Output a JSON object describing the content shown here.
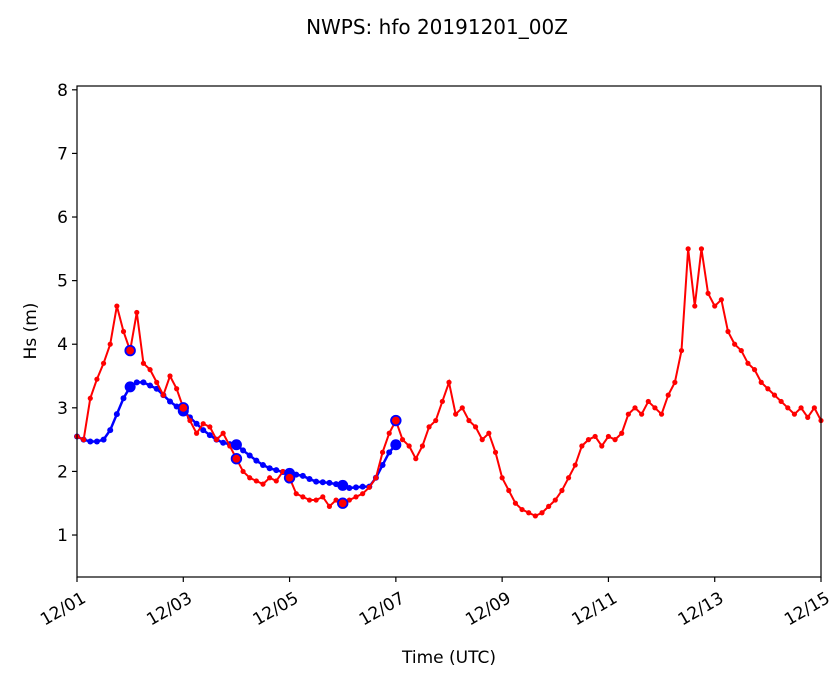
{
  "chart_data": {
    "type": "line",
    "title": "NWPS: hfo 20191201_00Z",
    "xlabel": "Time (UTC)",
    "ylabel": "Hs (m)",
    "xlim": [
      "12/01 00Z",
      "12/15 00Z"
    ],
    "ylim": [
      0.34,
      8.06
    ],
    "x_ticks": [
      "12/01",
      "12/03",
      "12/05",
      "12/07",
      "12/09",
      "12/11",
      "12/13",
      "12/15"
    ],
    "y_ticks": [
      "1",
      "2",
      "3",
      "4",
      "5",
      "6",
      "7",
      "8"
    ],
    "grid": false,
    "colors": {
      "red_series": "#ff0000",
      "blue_series": "#0000ff"
    },
    "series": [
      {
        "color": "#ff0000",
        "marker": "small-dot",
        "points": [
          [
            "12/01 00Z",
            2.55
          ],
          [
            "12/01 03Z",
            2.5
          ],
          [
            "12/01 06Z",
            3.15
          ],
          [
            "12/01 09Z",
            3.45
          ],
          [
            "12/01 12Z",
            3.7
          ],
          [
            "12/01 15Z",
            4.0
          ],
          [
            "12/01 18Z",
            4.6
          ],
          [
            "12/01 21Z",
            4.2
          ],
          [
            "12/02 00Z",
            3.9
          ],
          [
            "12/02 03Z",
            4.5
          ],
          [
            "12/02 06Z",
            3.7
          ],
          [
            "12/02 09Z",
            3.6
          ],
          [
            "12/02 12Z",
            3.4
          ],
          [
            "12/02 15Z",
            3.2
          ],
          [
            "12/02 18Z",
            3.5
          ],
          [
            "12/02 21Z",
            3.3
          ],
          [
            "12/03 00Z",
            3.0
          ],
          [
            "12/03 03Z",
            2.8
          ],
          [
            "12/03 06Z",
            2.6
          ],
          [
            "12/03 09Z",
            2.75
          ],
          [
            "12/03 12Z",
            2.7
          ],
          [
            "12/03 15Z",
            2.5
          ],
          [
            "12/03 18Z",
            2.6
          ],
          [
            "12/03 21Z",
            2.4
          ],
          [
            "12/04 00Z",
            2.2
          ],
          [
            "12/04 03Z",
            2.0
          ],
          [
            "12/04 06Z",
            1.9
          ],
          [
            "12/04 09Z",
            1.85
          ],
          [
            "12/04 12Z",
            1.8
          ],
          [
            "12/04 15Z",
            1.9
          ],
          [
            "12/04 18Z",
            1.85
          ],
          [
            "12/04 21Z",
            2.0
          ],
          [
            "12/05 00Z",
            1.9
          ],
          [
            "12/05 03Z",
            1.65
          ],
          [
            "12/05 06Z",
            1.6
          ],
          [
            "12/05 09Z",
            1.55
          ],
          [
            "12/05 12Z",
            1.55
          ],
          [
            "12/05 15Z",
            1.6
          ],
          [
            "12/05 18Z",
            1.45
          ],
          [
            "12/05 21Z",
            1.55
          ],
          [
            "12/06 00Z",
            1.5
          ],
          [
            "12/06 03Z",
            1.55
          ],
          [
            "12/06 06Z",
            1.6
          ],
          [
            "12/06 09Z",
            1.65
          ],
          [
            "12/06 12Z",
            1.75
          ],
          [
            "12/06 15Z",
            1.9
          ],
          [
            "12/06 18Z",
            2.3
          ],
          [
            "12/06 21Z",
            2.6
          ],
          [
            "12/07 00Z",
            2.8
          ],
          [
            "12/07 03Z",
            2.5
          ],
          [
            "12/07 06Z",
            2.4
          ],
          [
            "12/07 09Z",
            2.2
          ],
          [
            "12/07 12Z",
            2.4
          ],
          [
            "12/07 15Z",
            2.7
          ],
          [
            "12/07 18Z",
            2.8
          ],
          [
            "12/07 21Z",
            3.1
          ],
          [
            "12/08 00Z",
            3.4
          ],
          [
            "12/08 03Z",
            2.9
          ],
          [
            "12/08 06Z",
            3.0
          ],
          [
            "12/08 09Z",
            2.8
          ],
          [
            "12/08 12Z",
            2.7
          ],
          [
            "12/08 15Z",
            2.5
          ],
          [
            "12/08 18Z",
            2.6
          ],
          [
            "12/08 21Z",
            2.3
          ],
          [
            "12/09 00Z",
            1.9
          ],
          [
            "12/09 03Z",
            1.7
          ],
          [
            "12/09 06Z",
            1.5
          ],
          [
            "12/09 09Z",
            1.4
          ],
          [
            "12/09 12Z",
            1.35
          ],
          [
            "12/09 15Z",
            1.3
          ],
          [
            "12/09 18Z",
            1.35
          ],
          [
            "12/09 21Z",
            1.45
          ],
          [
            "12/10 00Z",
            1.55
          ],
          [
            "12/10 03Z",
            1.7
          ],
          [
            "12/10 06Z",
            1.9
          ],
          [
            "12/10 09Z",
            2.1
          ],
          [
            "12/10 12Z",
            2.4
          ],
          [
            "12/10 15Z",
            2.5
          ],
          [
            "12/10 18Z",
            2.55
          ],
          [
            "12/10 21Z",
            2.4
          ],
          [
            "12/11 00Z",
            2.55
          ],
          [
            "12/11 03Z",
            2.5
          ],
          [
            "12/11 06Z",
            2.6
          ],
          [
            "12/11 09Z",
            2.9
          ],
          [
            "12/11 12Z",
            3.0
          ],
          [
            "12/11 15Z",
            2.9
          ],
          [
            "12/11 18Z",
            3.1
          ],
          [
            "12/11 21Z",
            3.0
          ],
          [
            "12/12 00Z",
            2.9
          ],
          [
            "12/12 03Z",
            3.2
          ],
          [
            "12/12 06Z",
            3.4
          ],
          [
            "12/12 09Z",
            3.9
          ],
          [
            "12/12 12Z",
            5.5
          ],
          [
            "12/12 15Z",
            4.6
          ],
          [
            "12/12 18Z",
            5.5
          ],
          [
            "12/12 21Z",
            4.8
          ],
          [
            "12/13 00Z",
            4.6
          ],
          [
            "12/13 03Z",
            4.7
          ],
          [
            "12/13 06Z",
            4.2
          ],
          [
            "12/13 09Z",
            4.0
          ],
          [
            "12/13 12Z",
            3.9
          ],
          [
            "12/13 15Z",
            3.7
          ],
          [
            "12/13 18Z",
            3.6
          ],
          [
            "12/13 21Z",
            3.4
          ],
          [
            "12/14 00Z",
            3.3
          ],
          [
            "12/14 03Z",
            3.2
          ],
          [
            "12/14 06Z",
            3.1
          ],
          [
            "12/14 09Z",
            3.0
          ],
          [
            "12/14 12Z",
            2.9
          ],
          [
            "12/14 15Z",
            3.0
          ],
          [
            "12/14 18Z",
            2.85
          ],
          [
            "12/14 21Z",
            3.0
          ],
          [
            "12/15 00Z",
            2.8
          ]
        ],
        "highlighted": [
          [
            "12/02 00Z",
            3.9
          ],
          [
            "12/03 00Z",
            3.0
          ],
          [
            "12/04 00Z",
            2.2
          ],
          [
            "12/05 00Z",
            1.9
          ],
          [
            "12/06 00Z",
            1.5
          ],
          [
            "12/07 00Z",
            2.8
          ]
        ]
      },
      {
        "color": "#0000ff",
        "marker": "dot",
        "points": [
          [
            "12/01 00Z",
            2.55
          ],
          [
            "12/01 03Z",
            2.5
          ],
          [
            "12/01 06Z",
            2.47
          ],
          [
            "12/01 09Z",
            2.47
          ],
          [
            "12/01 12Z",
            2.5
          ],
          [
            "12/01 15Z",
            2.65
          ],
          [
            "12/01 18Z",
            2.9
          ],
          [
            "12/01 21Z",
            3.15
          ],
          [
            "12/02 00Z",
            3.33
          ],
          [
            "12/02 03Z",
            3.4
          ],
          [
            "12/02 06Z",
            3.4
          ],
          [
            "12/02 09Z",
            3.35
          ],
          [
            "12/02 12Z",
            3.3
          ],
          [
            "12/02 15Z",
            3.2
          ],
          [
            "12/02 18Z",
            3.1
          ],
          [
            "12/02 21Z",
            3.02
          ],
          [
            "12/03 00Z",
            2.95
          ],
          [
            "12/03 03Z",
            2.85
          ],
          [
            "12/03 06Z",
            2.75
          ],
          [
            "12/03 09Z",
            2.65
          ],
          [
            "12/03 12Z",
            2.57
          ],
          [
            "12/03 15Z",
            2.5
          ],
          [
            "12/03 18Z",
            2.45
          ],
          [
            "12/03 21Z",
            2.43
          ],
          [
            "12/04 00Z",
            2.42
          ],
          [
            "12/04 03Z",
            2.33
          ],
          [
            "12/04 06Z",
            2.25
          ],
          [
            "12/04 09Z",
            2.17
          ],
          [
            "12/04 12Z",
            2.1
          ],
          [
            "12/04 15Z",
            2.05
          ],
          [
            "12/04 18Z",
            2.02
          ],
          [
            "12/04 21Z",
            1.99
          ],
          [
            "12/05 00Z",
            1.97
          ],
          [
            "12/05 03Z",
            1.95
          ],
          [
            "12/05 06Z",
            1.93
          ],
          [
            "12/05 09Z",
            1.88
          ],
          [
            "12/05 12Z",
            1.84
          ],
          [
            "12/05 15Z",
            1.83
          ],
          [
            "12/05 18Z",
            1.82
          ],
          [
            "12/05 21Z",
            1.8
          ],
          [
            "12/06 00Z",
            1.78
          ],
          [
            "12/06 03Z",
            1.74
          ],
          [
            "12/06 06Z",
            1.75
          ],
          [
            "12/06 09Z",
            1.76
          ],
          [
            "12/06 12Z",
            1.76
          ],
          [
            "12/06 15Z",
            1.9
          ],
          [
            "12/06 18Z",
            2.1
          ],
          [
            "12/06 21Z",
            2.3
          ],
          [
            "12/07 00Z",
            2.42
          ]
        ],
        "highlighted": [
          [
            "12/02 00Z",
            3.33
          ],
          [
            "12/03 00Z",
            2.95
          ],
          [
            "12/04 00Z",
            2.42
          ],
          [
            "12/05 00Z",
            1.97
          ],
          [
            "12/06 00Z",
            1.78
          ],
          [
            "12/07 00Z",
            2.42
          ]
        ]
      }
    ]
  }
}
